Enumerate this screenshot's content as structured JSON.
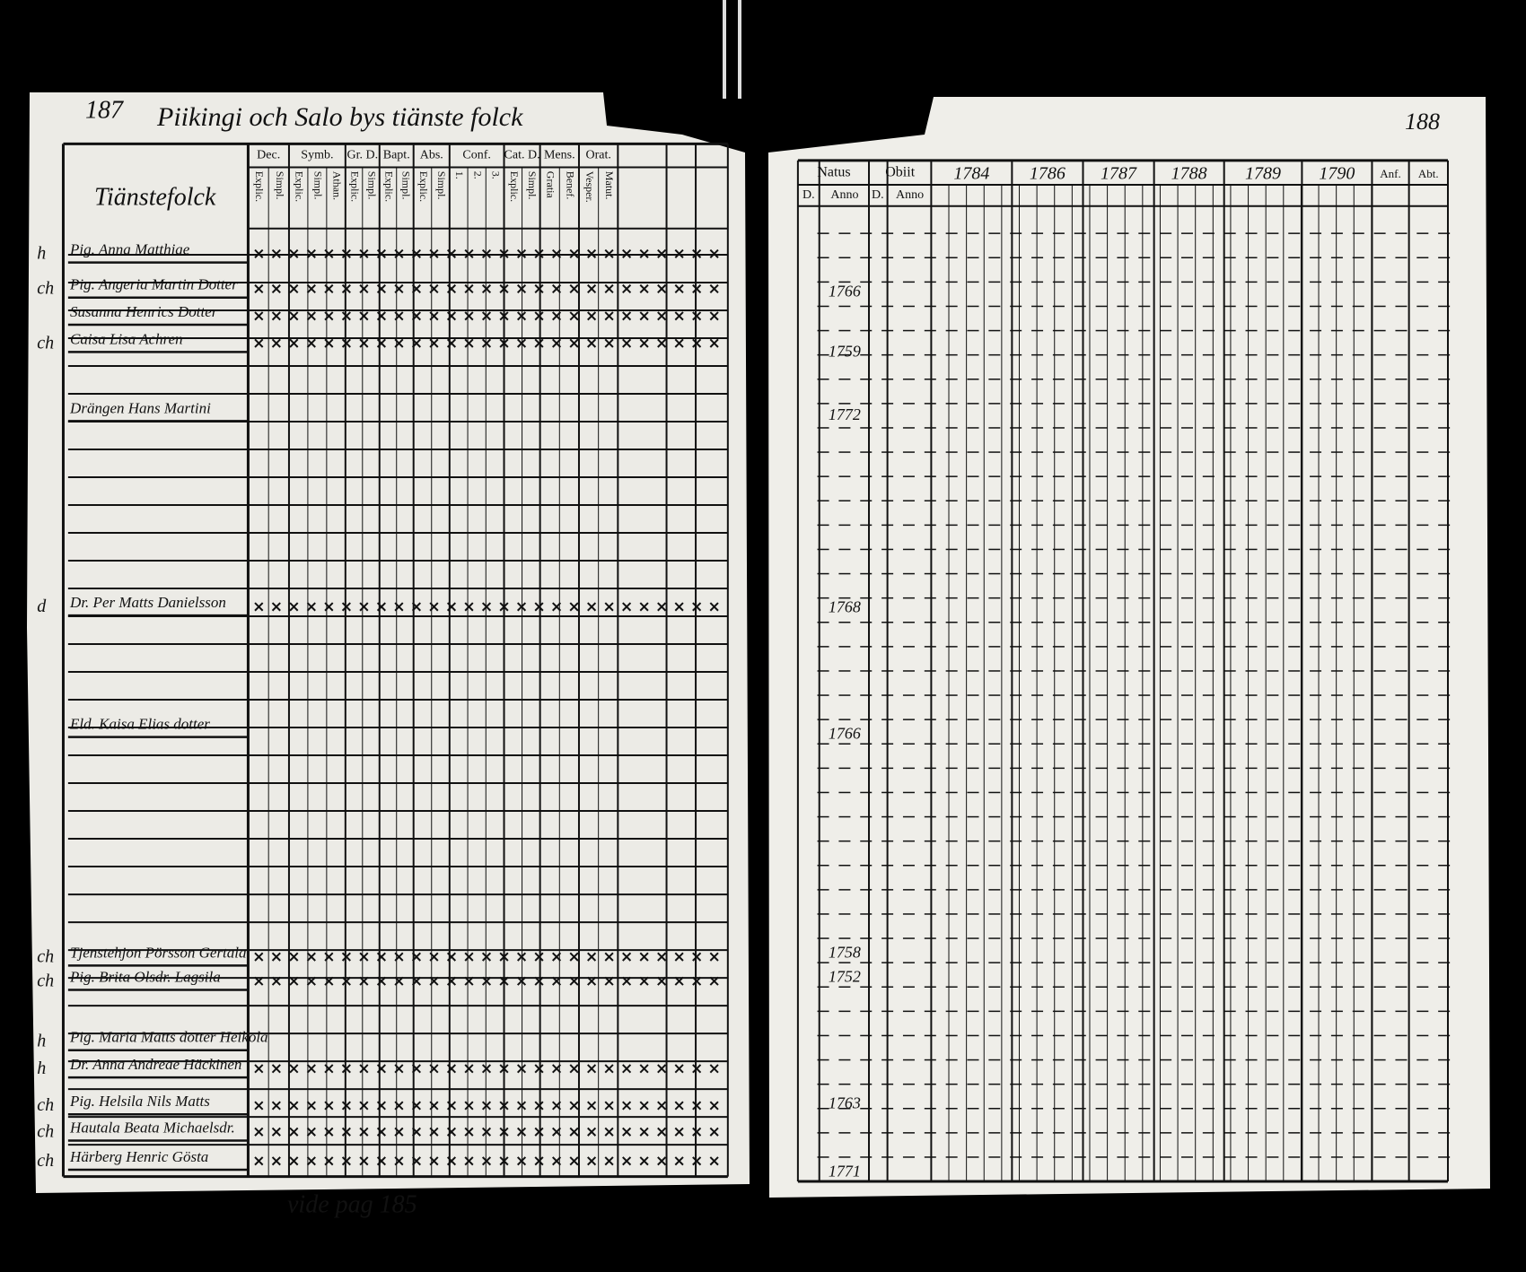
{
  "left_page": {
    "page_number": "187",
    "heading": "Piikingi och Salo bys tiänste folck",
    "column_title": "Tiänstefolck",
    "columns": [
      {
        "header": "Dec.",
        "sub": [
          "Explic.",
          "Simpl."
        ]
      },
      {
        "header": "Symb.",
        "sub": [
          "Explic.",
          "Simpl.",
          "Athan."
        ]
      },
      {
        "header": "Gr. D.",
        "sub": [
          "Explic.",
          "Simpl."
        ]
      },
      {
        "header": "Bapt.",
        "sub": [
          "Explic.",
          "Simpl."
        ]
      },
      {
        "header": "Abs.",
        "sub": [
          "Explic.",
          "Simpl."
        ]
      },
      {
        "header": "Conf.",
        "sub": [
          "1.",
          "2.",
          "3."
        ]
      },
      {
        "header": "Cat. D.",
        "sub": [
          "Explic.",
          "Simpl."
        ]
      },
      {
        "header": "Mens.",
        "sub": [
          "Gratia",
          "Benef."
        ]
      },
      {
        "header": "Orat.",
        "sub": [
          "Vesper.",
          "Matut."
        ]
      }
    ],
    "rows": [
      {
        "margin": "h",
        "name": "Pig. Anna Matthiae"
      },
      {
        "margin": "ch",
        "name": "Pig. Angeria Martin Dotter"
      },
      {
        "margin": "",
        "name": "Susanna Henrics Dotter"
      },
      {
        "margin": "ch",
        "name": "Caisa Lisa Achren"
      },
      {
        "margin": "",
        "name": "Drängen Hans Martini"
      },
      {
        "margin": "d",
        "name": "Dr. Per Matts Danielsson"
      },
      {
        "margin": "",
        "name": "Eld. Kaisa Elias dotter"
      },
      {
        "margin": "ch",
        "name": "Tjenstehjon Pörsson Gertala"
      },
      {
        "margin": "ch",
        "name": "Pig. Brita Olsdr. Lagsila"
      },
      {
        "margin": "h",
        "name": "Pig. Maria Matts dotter Heikola"
      },
      {
        "margin": "h",
        "name": "Dr. Anna Andreae Häckinen"
      },
      {
        "margin": "ch",
        "name": "Pig. Helsila Nils Matts"
      },
      {
        "margin": "ch",
        "name": "Hautala Beata Michaelsdr."
      },
      {
        "margin": "ch",
        "name": "Härberg Henric Gösta"
      }
    ],
    "note": "vide pag 185"
  },
  "right_page": {
    "page_number": "188",
    "natus": "Natus",
    "obiit": "Obiit",
    "day": "D.",
    "anno": "Anno",
    "years": [
      "1784",
      "1786",
      "1787",
      "1788",
      "1789",
      "1790"
    ],
    "extra_columns": [
      "Anf.",
      "Abt."
    ],
    "rows": [
      {
        "anno": "1766"
      },
      {
        "anno": "1759"
      },
      {
        "anno": "1772"
      },
      {
        "anno": "1768"
      },
      {
        "anno": "1766"
      },
      {
        "anno": "1758"
      },
      {
        "anno": "1752"
      },
      {
        "anno": "1763"
      },
      {
        "anno": "1771"
      }
    ]
  }
}
